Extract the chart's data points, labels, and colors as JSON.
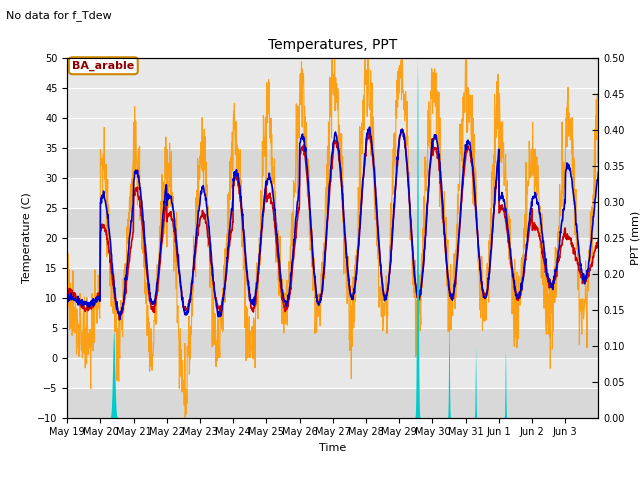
{
  "title": "Temperatures, PPT",
  "top_note": "No data for f_Tdew",
  "annotation": "BA_arable",
  "xlabel": "Time",
  "ylabel_left": "Temperature (C)",
  "ylabel_right": "PPT (mm)",
  "ylim_left": [
    -10,
    50
  ],
  "ylim_right": [
    0.0,
    0.5
  ],
  "yticks_left": [
    -10,
    -5,
    0,
    5,
    10,
    15,
    20,
    25,
    30,
    35,
    40,
    45,
    50
  ],
  "yticks_right": [
    0.0,
    0.05,
    0.1,
    0.15,
    0.2,
    0.25,
    0.3,
    0.35,
    0.4,
    0.45,
    0.5
  ],
  "bg_bands": [
    [
      30,
      35,
      "#d8d8d8"
    ],
    [
      20,
      25,
      "#d8d8d8"
    ],
    [
      10,
      15,
      "#d8d8d8"
    ],
    [
      0,
      5,
      "#d8d8d8"
    ],
    [
      -10,
      -5,
      "#d8d8d8"
    ]
  ],
  "plot_bg_color": "#e8e8e8",
  "colors": {
    "Tair": "#cc0000",
    "Tsurf": "#0000cc",
    "Tsky": "#ff9900",
    "ppt": "#00cccc"
  },
  "tick_labels": [
    "May 19",
    "May 20",
    "May 21",
    "May 22",
    "May 23",
    "May 24",
    "May 25",
    "May 26",
    "May 27",
    "May 28",
    "May 29",
    "May 30",
    "May 31",
    "Jun 1",
    "Jun 2",
    "Jun 3"
  ]
}
